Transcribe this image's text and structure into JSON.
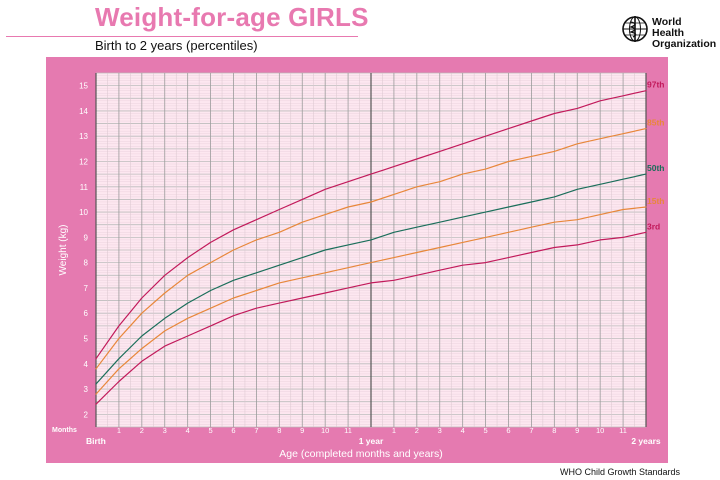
{
  "header": {
    "title": "Weight-for-age GIRLS",
    "subtitle": "Birth to 2 years (percentiles)",
    "org_line1": "World Health",
    "org_line2": "Organization"
  },
  "footer": {
    "text": "WHO Child Growth Standards"
  },
  "colors": {
    "frame": "#e57ab0",
    "plot_bg": "#fde7f0",
    "grid": "#b9b9b9",
    "p97": "#c21a5b",
    "p85": "#e8873a",
    "p50": "#1a6e5a",
    "p15": "#e8873a",
    "p3": "#c21a5b"
  },
  "chart_data": {
    "type": "line",
    "title": "Weight-for-age GIRLS",
    "subtitle": "Birth to 2 years (percentiles)",
    "xlabel": "Age (completed months and years)",
    "ylabel": "Weight (kg)",
    "xlim": [
      0,
      24
    ],
    "ylim": [
      1.5,
      15.5
    ],
    "x_axis_marker": "Months",
    "x_major_labels": [
      {
        "x": 0,
        "label": "Birth"
      },
      {
        "x": 12,
        "label": "1 year"
      },
      {
        "x": 24,
        "label": "2 years"
      }
    ],
    "x_minor_labels": [
      "1",
      "2",
      "3",
      "4",
      "5",
      "6",
      "7",
      "8",
      "9",
      "10",
      "11"
    ],
    "y_ticks": [
      2,
      3,
      4,
      5,
      6,
      7,
      8,
      9,
      10,
      11,
      12,
      13,
      14,
      15
    ],
    "grid": true,
    "x": [
      0,
      1,
      2,
      3,
      4,
      5,
      6,
      7,
      8,
      9,
      10,
      11,
      12,
      13,
      14,
      15,
      16,
      17,
      18,
      19,
      20,
      21,
      22,
      23,
      24
    ],
    "series": [
      {
        "name": "97th",
        "color_key": "p97",
        "values": [
          4.2,
          5.5,
          6.6,
          7.5,
          8.2,
          8.8,
          9.3,
          9.7,
          10.1,
          10.5,
          10.9,
          11.2,
          11.5,
          11.8,
          12.1,
          12.4,
          12.7,
          13.0,
          13.3,
          13.6,
          13.9,
          14.1,
          14.4,
          14.6,
          14.8
        ]
      },
      {
        "name": "85th",
        "color_key": "p85",
        "values": [
          3.8,
          5.0,
          6.0,
          6.8,
          7.5,
          8.0,
          8.5,
          8.9,
          9.2,
          9.6,
          9.9,
          10.2,
          10.4,
          10.7,
          11.0,
          11.2,
          11.5,
          11.7,
          12.0,
          12.2,
          12.4,
          12.7,
          12.9,
          13.1,
          13.3
        ]
      },
      {
        "name": "50th",
        "color_key": "p50",
        "values": [
          3.2,
          4.2,
          5.1,
          5.8,
          6.4,
          6.9,
          7.3,
          7.6,
          7.9,
          8.2,
          8.5,
          8.7,
          8.9,
          9.2,
          9.4,
          9.6,
          9.8,
          10.0,
          10.2,
          10.4,
          10.6,
          10.9,
          11.1,
          11.3,
          11.5
        ]
      },
      {
        "name": "15th",
        "color_key": "p15",
        "values": [
          2.8,
          3.8,
          4.6,
          5.3,
          5.8,
          6.2,
          6.6,
          6.9,
          7.2,
          7.4,
          7.6,
          7.8,
          8.0,
          8.2,
          8.4,
          8.6,
          8.8,
          9.0,
          9.2,
          9.4,
          9.6,
          9.7,
          9.9,
          10.1,
          10.2
        ]
      },
      {
        "name": "3rd",
        "color_key": "p3",
        "values": [
          2.4,
          3.3,
          4.1,
          4.7,
          5.1,
          5.5,
          5.9,
          6.2,
          6.4,
          6.6,
          6.8,
          7.0,
          7.2,
          7.3,
          7.5,
          7.7,
          7.9,
          8.0,
          8.2,
          8.4,
          8.6,
          8.7,
          8.9,
          9.0,
          9.2
        ]
      }
    ]
  }
}
